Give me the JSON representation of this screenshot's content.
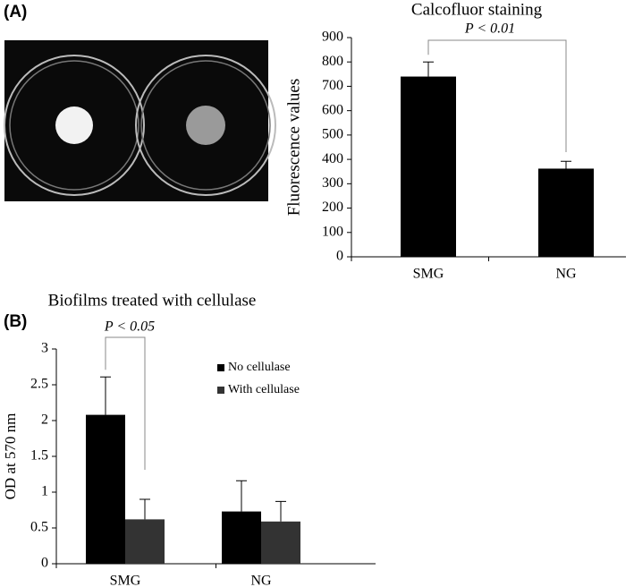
{
  "panel_labels": [
    "(A)",
    "(B)"
  ],
  "chart_data": [
    {
      "type": "bar",
      "title": "Calcofluor staining",
      "y_label": "Fluorescence values",
      "categories": [
        "SMG",
        "NG"
      ],
      "values": [
        740,
        362
      ],
      "errors": [
        60,
        30
      ],
      "color": "#000000",
      "ylim": [
        0,
        900
      ],
      "yticks": [
        0,
        100,
        200,
        300,
        400,
        500,
        600,
        700,
        800,
        900
      ],
      "annotation": "P < 0.01"
    },
    {
      "type": "bar",
      "title": "Biofilms treated with cellulase",
      "y_label": "OD at 570 nm",
      "categories": [
        "SMG",
        "NG"
      ],
      "series": [
        {
          "name": "No cellulase",
          "color": "#000000",
          "values": [
            2.08,
            0.73
          ],
          "errors": [
            0.53,
            0.43
          ]
        },
        {
          "name": "With cellulase",
          "color": "#333333",
          "values": [
            0.62,
            0.59
          ],
          "errors": [
            0.28,
            0.28
          ]
        }
      ],
      "ylim": [
        0,
        3
      ],
      "yticks": [
        0,
        0.5,
        1,
        1.5,
        2,
        2.5,
        3
      ],
      "annotation": "P < 0.05"
    }
  ]
}
